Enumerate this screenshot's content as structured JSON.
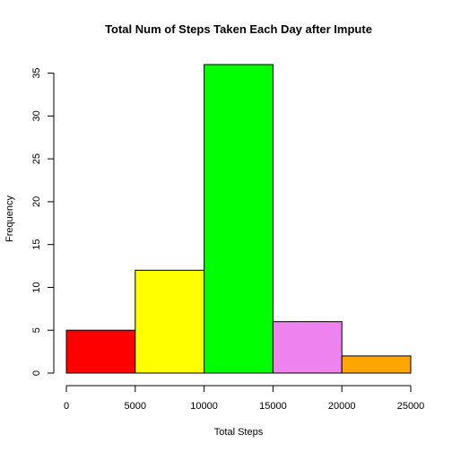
{
  "chart_data": {
    "type": "bar",
    "title": "Total Num of Steps Taken Each Day after Impute",
    "xlabel": "Total Steps",
    "ylabel": "Frequency",
    "bins": [
      {
        "from": 0,
        "to": 5000,
        "value": 5,
        "color": "#ff0000"
      },
      {
        "from": 5000,
        "to": 10000,
        "value": 12,
        "color": "#ffff00"
      },
      {
        "from": 10000,
        "to": 15000,
        "value": 36,
        "color": "#00ff00"
      },
      {
        "from": 15000,
        "to": 20000,
        "value": 6,
        "color": "#ee82ee"
      },
      {
        "from": 20000,
        "to": 25000,
        "value": 2,
        "color": "#ffa500"
      }
    ],
    "xlim": [
      0,
      25000
    ],
    "ylim": [
      0,
      36
    ],
    "x_ticks": [
      0,
      5000,
      10000,
      15000,
      20000,
      25000
    ],
    "x_tick_labels": [
      "0",
      "5000",
      "10000",
      "15000",
      "20000",
      "25000"
    ],
    "y_ticks": [
      0,
      5,
      10,
      15,
      20,
      25,
      30,
      35
    ],
    "y_tick_labels": [
      "0",
      "5",
      "10",
      "15",
      "20",
      "25",
      "30",
      "35"
    ],
    "grid": false,
    "legend": "none"
  }
}
